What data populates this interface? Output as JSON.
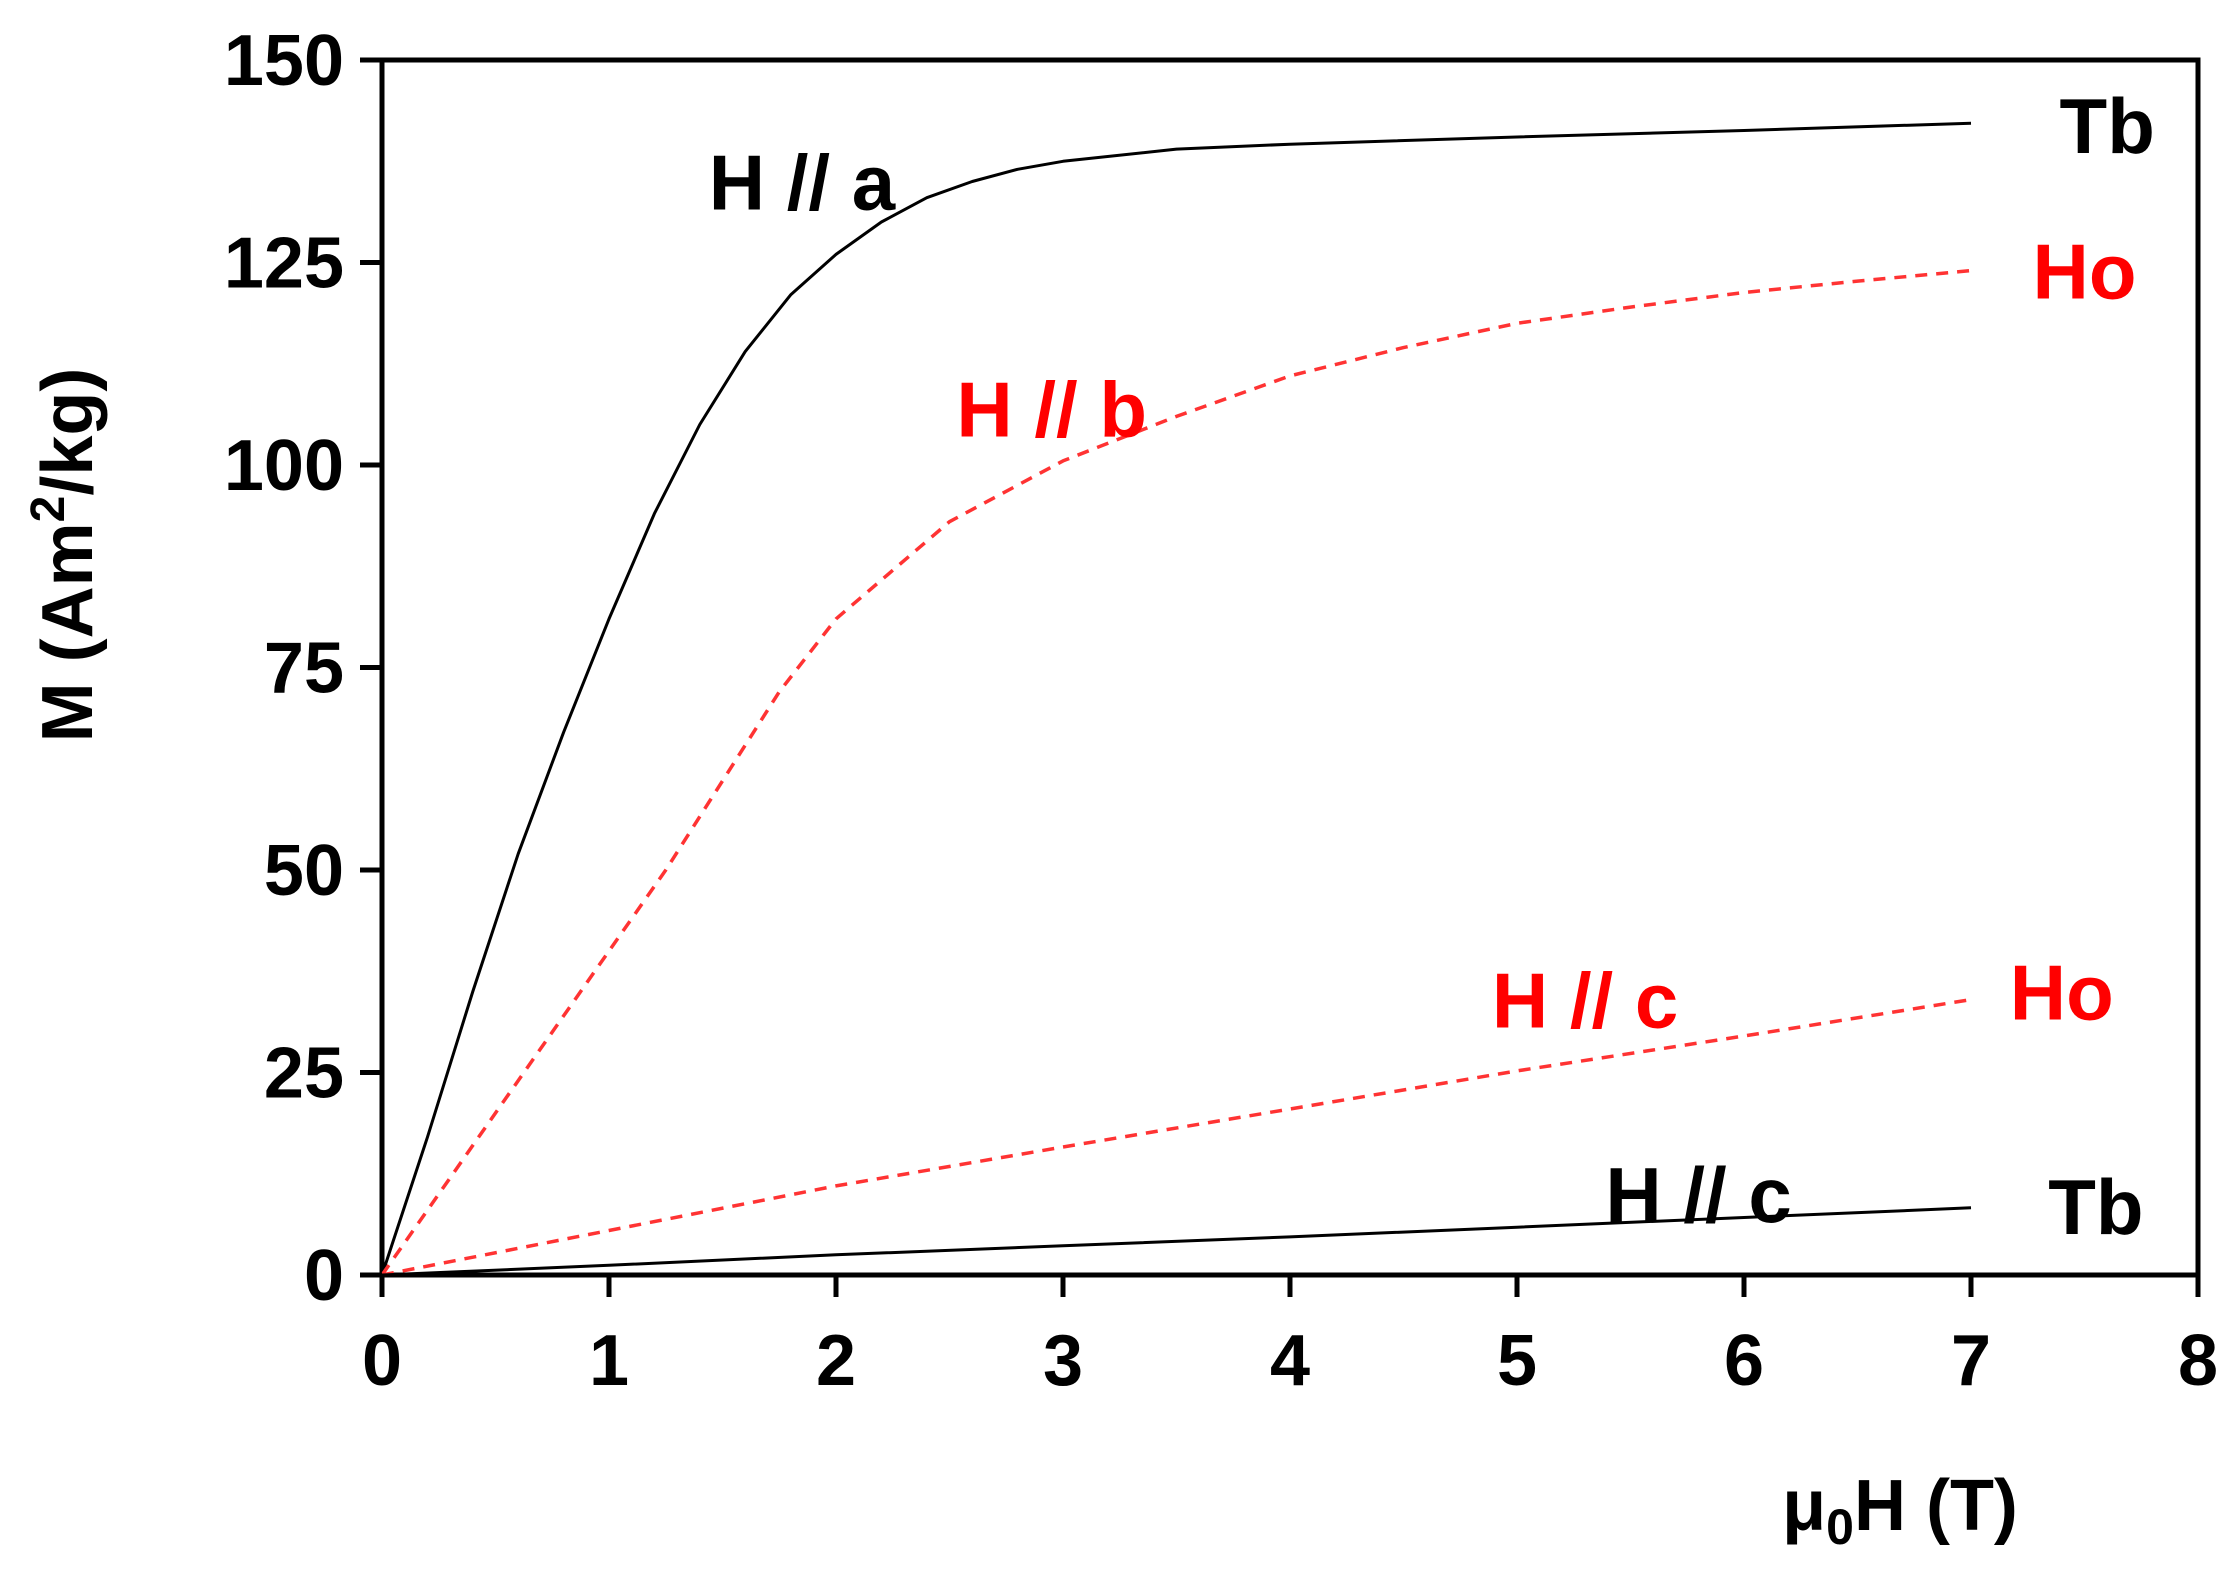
{
  "chart_data": {
    "type": "line",
    "title": "",
    "xlabel": "μ0H (T)",
    "xlabel_parts": {
      "mu": "μ",
      "sub": "0",
      "rest": "H  (T)"
    },
    "ylabel": "M (Am2/kg)",
    "ylabel_parts": {
      "pre": "M (Am",
      "sup": "2",
      "post": "/kg)"
    },
    "xlim": [
      0,
      8
    ],
    "ylim": [
      0,
      150
    ],
    "xticks": [
      0,
      1,
      2,
      3,
      4,
      5,
      6,
      7,
      8
    ],
    "yticks": [
      0,
      25,
      50,
      75,
      100,
      125,
      150
    ],
    "grid": false,
    "legend": "none",
    "series": [
      {
        "color": "#000000",
        "dash": "solid",
        "x": [
          0,
          0.2,
          0.4,
          0.6,
          0.8,
          1.0,
          1.2,
          1.4,
          1.6,
          1.8,
          2.0,
          2.2,
          2.4,
          2.6,
          2.8,
          3.0,
          3.5,
          4.0,
          5.0,
          6.0,
          7.0
        ],
        "y": [
          0,
          17,
          35,
          52,
          67,
          81,
          94,
          105,
          114,
          121,
          126,
          130,
          133,
          135,
          136.5,
          137.5,
          139,
          139.6,
          140.5,
          141.3,
          142.2
        ]
      },
      {
        "color": "#ff3333",
        "dash": "dashed",
        "x": [
          0,
          0.25,
          0.5,
          0.75,
          1.0,
          1.25,
          1.5,
          1.75,
          2.0,
          2.5,
          3.0,
          3.5,
          4.0,
          4.5,
          5.0,
          5.5,
          6.0,
          6.5,
          7.0
        ],
        "y": [
          0,
          10,
          20,
          30,
          40,
          50,
          61,
          72,
          81,
          93,
          100.5,
          106,
          111,
          114.5,
          117.5,
          119.5,
          121.3,
          122.7,
          124
        ]
      },
      {
        "color": "#ff3333",
        "dash": "dashed",
        "x": [
          0,
          1,
          2,
          3,
          4,
          5,
          6,
          7
        ],
        "y": [
          0,
          5.5,
          11,
          15.8,
          20.5,
          25.2,
          29.5,
          34
        ]
      },
      {
        "color": "#000000",
        "dash": "solid",
        "x": [
          0,
          1,
          2,
          3,
          4,
          5,
          6,
          7
        ],
        "y": [
          0,
          1.2,
          2.5,
          3.6,
          4.7,
          5.9,
          7.1,
          8.3
        ]
      }
    ],
    "annotations": [
      {
        "text": "H // a",
        "x": 1.85,
        "y": 135,
        "color": "#000000"
      },
      {
        "text": "Tb",
        "x": 7.6,
        "y": 142,
        "color": "#000000"
      },
      {
        "text": "H // b",
        "x": 2.95,
        "y": 107,
        "color": "#ff0000"
      },
      {
        "text": "Ho",
        "x": 7.5,
        "y": 124,
        "color": "#ff0000"
      },
      {
        "text": "H // c",
        "x": 5.3,
        "y": 34,
        "color": "#ff0000"
      },
      {
        "text": "Ho",
        "x": 7.4,
        "y": 35,
        "color": "#ff0000"
      },
      {
        "text": "H // c",
        "x": 5.8,
        "y": 10,
        "color": "#000000"
      },
      {
        "text": "Tb",
        "x": 7.55,
        "y": 8.5,
        "color": "#000000"
      }
    ]
  }
}
